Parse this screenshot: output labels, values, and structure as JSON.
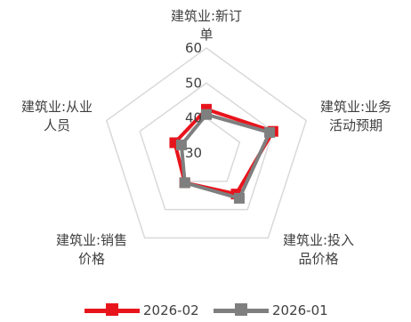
{
  "chart_data": {
    "type": "radar",
    "axes": [
      {
        "label_lines": [
          "建筑业:新订",
          "单"
        ]
      },
      {
        "label_lines": [
          "建筑业:业务",
          "活动预期"
        ]
      },
      {
        "label_lines": [
          "建筑业:投入",
          "品价格"
        ]
      },
      {
        "label_lines": [
          "建筑业:销售",
          "价格"
        ]
      },
      {
        "label_lines": [
          "建筑业:从业",
          "人员"
        ]
      }
    ],
    "ticks": [
      "30",
      "40",
      "50",
      "60"
    ],
    "r_range": [
      30,
      60
    ],
    "grid": true,
    "legend_position": "bottom",
    "series": [
      {
        "name": "2026-02",
        "color": "#e8141c",
        "values": [
          42.5,
          50.0,
          44.5,
          40.5,
          39.5
        ]
      },
      {
        "name": "2026-01",
        "color": "#7f7f7f",
        "values": [
          41.0,
          49.0,
          46.0,
          40.5,
          37.5
        ]
      }
    ]
  }
}
